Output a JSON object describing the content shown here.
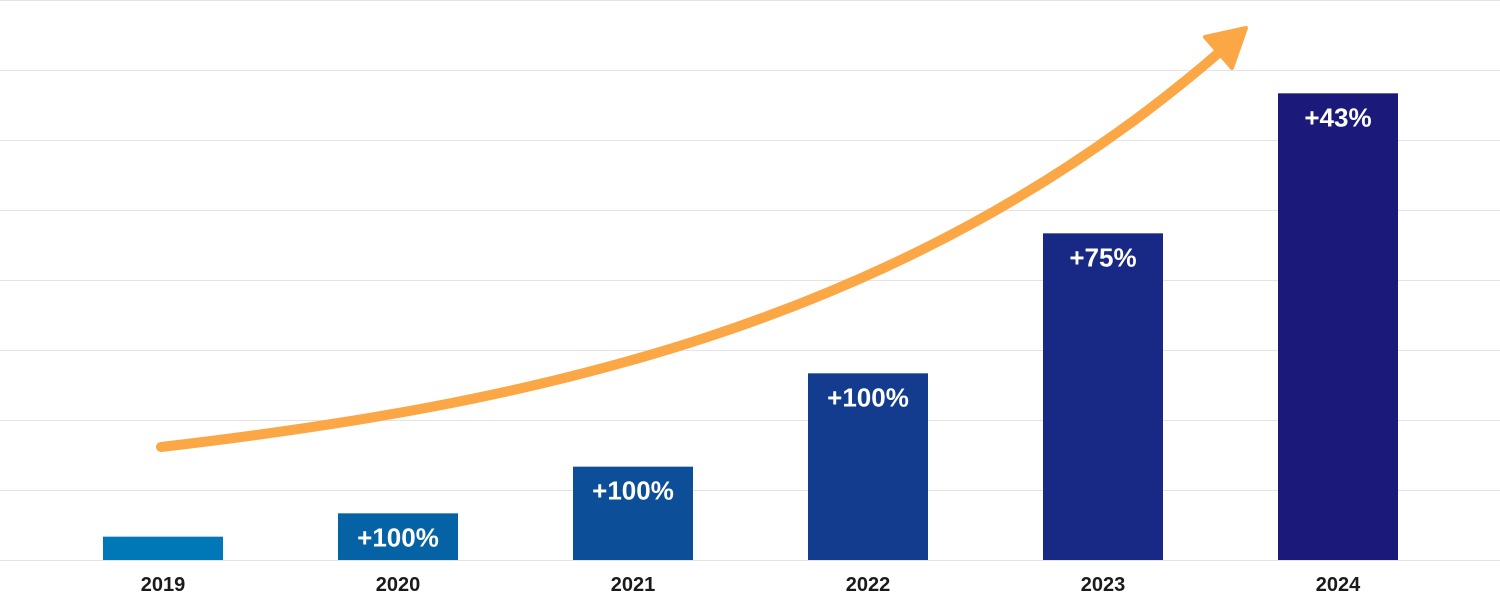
{
  "chart_data": {
    "type": "bar",
    "title": "",
    "xlabel": "",
    "ylabel": "",
    "categories": [
      "2019",
      "2020",
      "2021",
      "2022",
      "2023",
      "2024"
    ],
    "values": [
      1,
      2,
      4,
      8,
      14,
      20
    ],
    "data_labels": [
      "",
      "+100%",
      "+100%",
      "+100%",
      "+75%",
      "+43%"
    ],
    "ylim": [
      0,
      24
    ],
    "grid": true,
    "gridlines": 8,
    "legend": "none",
    "bar_colors": [
      "#0077b6",
      "#0563a5",
      "#0c4f98",
      "#133b8e",
      "#172985",
      "#1b1a7a"
    ],
    "trend_arrow_color": "#fba746",
    "gridline_color": "#e3e3e3",
    "tick_color": "#1a1a1a"
  }
}
